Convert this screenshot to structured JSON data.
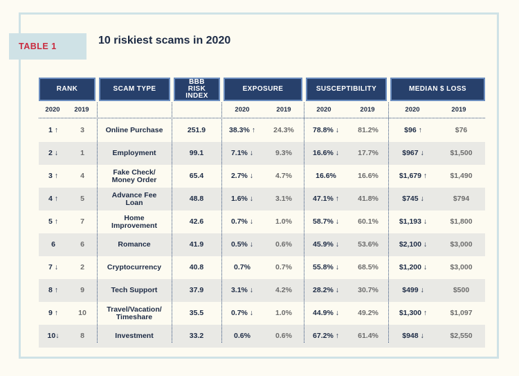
{
  "tag": "TABLE 1",
  "title": "10 riskiest scams in 2020",
  "headers": {
    "rank": "RANK",
    "scam_type": "SCAM TYPE",
    "bbb": "BBB RISK INDEX",
    "exposure": "EXPOSURE",
    "susceptibility": "SUSCEPTIBILITY",
    "loss": "MEDIAN $ LOSS"
  },
  "years": {
    "y2020": "2020",
    "y2019": "2019"
  },
  "rows": [
    {
      "r20": "1 ↑",
      "r19": "3",
      "type": "Online Purchase",
      "bbb": "251.9",
      "e20": "38.3% ↑",
      "e19": "24.3%",
      "s20": "78.8% ↓",
      "s19": "81.2%",
      "l20": "$96 ↑",
      "l19": "$76"
    },
    {
      "r20": "2 ↓",
      "r19": "1",
      "type": "Employment",
      "bbb": "99.1",
      "e20": "7.1% ↓",
      "e19": "9.3%",
      "s20": "16.6% ↓",
      "s19": "17.7%",
      "l20": "$967 ↓",
      "l19": "$1,500"
    },
    {
      "r20": "3 ↑",
      "r19": "4",
      "type": "Fake Check/\nMoney Order",
      "bbb": "65.4",
      "e20": "2.7% ↓",
      "e19": "4.7%",
      "s20": "16.6%",
      "s19": "16.6%",
      "l20": "$1,679 ↑",
      "l19": "$1,490"
    },
    {
      "r20": "4 ↑",
      "r19": "5",
      "type": "Advance Fee\nLoan",
      "bbb": "48.8",
      "e20": "1.6% ↓",
      "e19": "3.1%",
      "s20": "47.1% ↑",
      "s19": "41.8%",
      "l20": "$745 ↓",
      "l19": "$794"
    },
    {
      "r20": "5 ↑",
      "r19": "7",
      "type": "Home\nImprovement",
      "bbb": "42.6",
      "e20": "0.7% ↓",
      "e19": "1.0%",
      "s20": "58.7% ↓",
      "s19": "60.1%",
      "l20": "$1,193 ↓",
      "l19": "$1,800"
    },
    {
      "r20": "6",
      "r19": "6",
      "type": "Romance",
      "bbb": "41.9",
      "e20": "0.5% ↓",
      "e19": "0.6%",
      "s20": "45.9% ↓",
      "s19": "53.6%",
      "l20": "$2,100 ↓",
      "l19": "$3,000"
    },
    {
      "r20": "7 ↓",
      "r19": "2",
      "type": "Cryptocurrency",
      "bbb": "40.8",
      "e20": "0.7%",
      "e19": "0.7%",
      "s20": "55.8% ↓",
      "s19": "68.5%",
      "l20": "$1,200 ↓",
      "l19": "$3,000"
    },
    {
      "r20": "8 ↑",
      "r19": "9",
      "type": "Tech Support",
      "bbb": "37.9",
      "e20": "3.1% ↓",
      "e19": "4.2%",
      "s20": "28.2% ↓",
      "s19": "30.7%",
      "l20": "$499 ↓",
      "l19": "$500"
    },
    {
      "r20": "9 ↑",
      "r19": "10",
      "type": "Travel/Vacation/\nTimeshare",
      "bbb": "35.5",
      "e20": "0.7% ↓",
      "e19": "1.0%",
      "s20": "44.9% ↓",
      "s19": "49.2%",
      "l20": "$1,300 ↑",
      "l19": "$1,097"
    },
    {
      "r20": "10↓",
      "r19": "8",
      "type": "Investment",
      "bbb": "33.2",
      "e20": "0.6%",
      "e19": "0.6%",
      "s20": "67.2% ↑",
      "s19": "61.4%",
      "l20": "$948 ↓",
      "l19": "$2,550"
    }
  ]
}
